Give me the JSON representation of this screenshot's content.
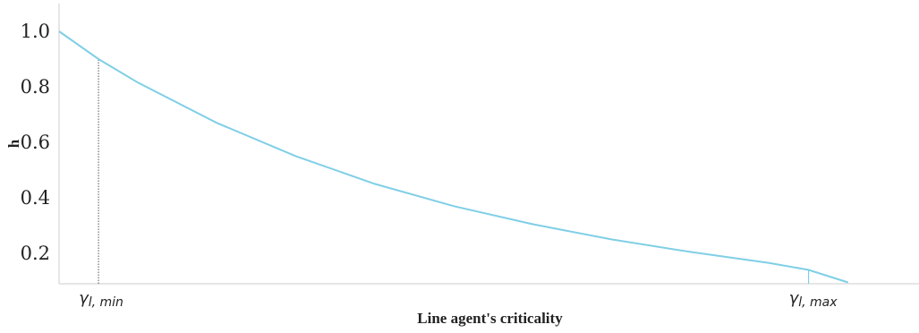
{
  "chart_data": {
    "type": "line",
    "title": "",
    "xlabel": "Line agent's criticality",
    "ylabel": "h",
    "x_ticks": [
      {
        "x": 0.05,
        "label_main": "γ",
        "label_sub": "l, min"
      },
      {
        "x": 0.95,
        "label_main": "γ",
        "label_sub": "l, max"
      }
    ],
    "y_ticks": [
      "0.2",
      "0.4",
      "0.6",
      "0.8",
      "1.0"
    ],
    "xlim": [
      0,
      1.09
    ],
    "ylim": [
      0.09,
      1.1
    ],
    "grid": false,
    "series": [
      {
        "color": "#7fcfe6",
        "x": [
          0.0,
          0.05,
          0.1,
          0.2,
          0.3,
          0.4,
          0.5,
          0.6,
          0.7,
          0.8,
          0.9,
          0.95,
          1.0
        ],
        "y": [
          1.0,
          0.9,
          0.815,
          0.67,
          0.55,
          0.45,
          0.37,
          0.305,
          0.25,
          0.205,
          0.165,
          0.14,
          0.095
        ]
      }
    ],
    "reference_lines": [
      {
        "x": 0.05,
        "y": 0.9,
        "style": "dotted",
        "color": "#555555"
      },
      {
        "x": 0.95,
        "y": 0.14,
        "style": "solid",
        "color": "#7fcfe6"
      }
    ]
  }
}
